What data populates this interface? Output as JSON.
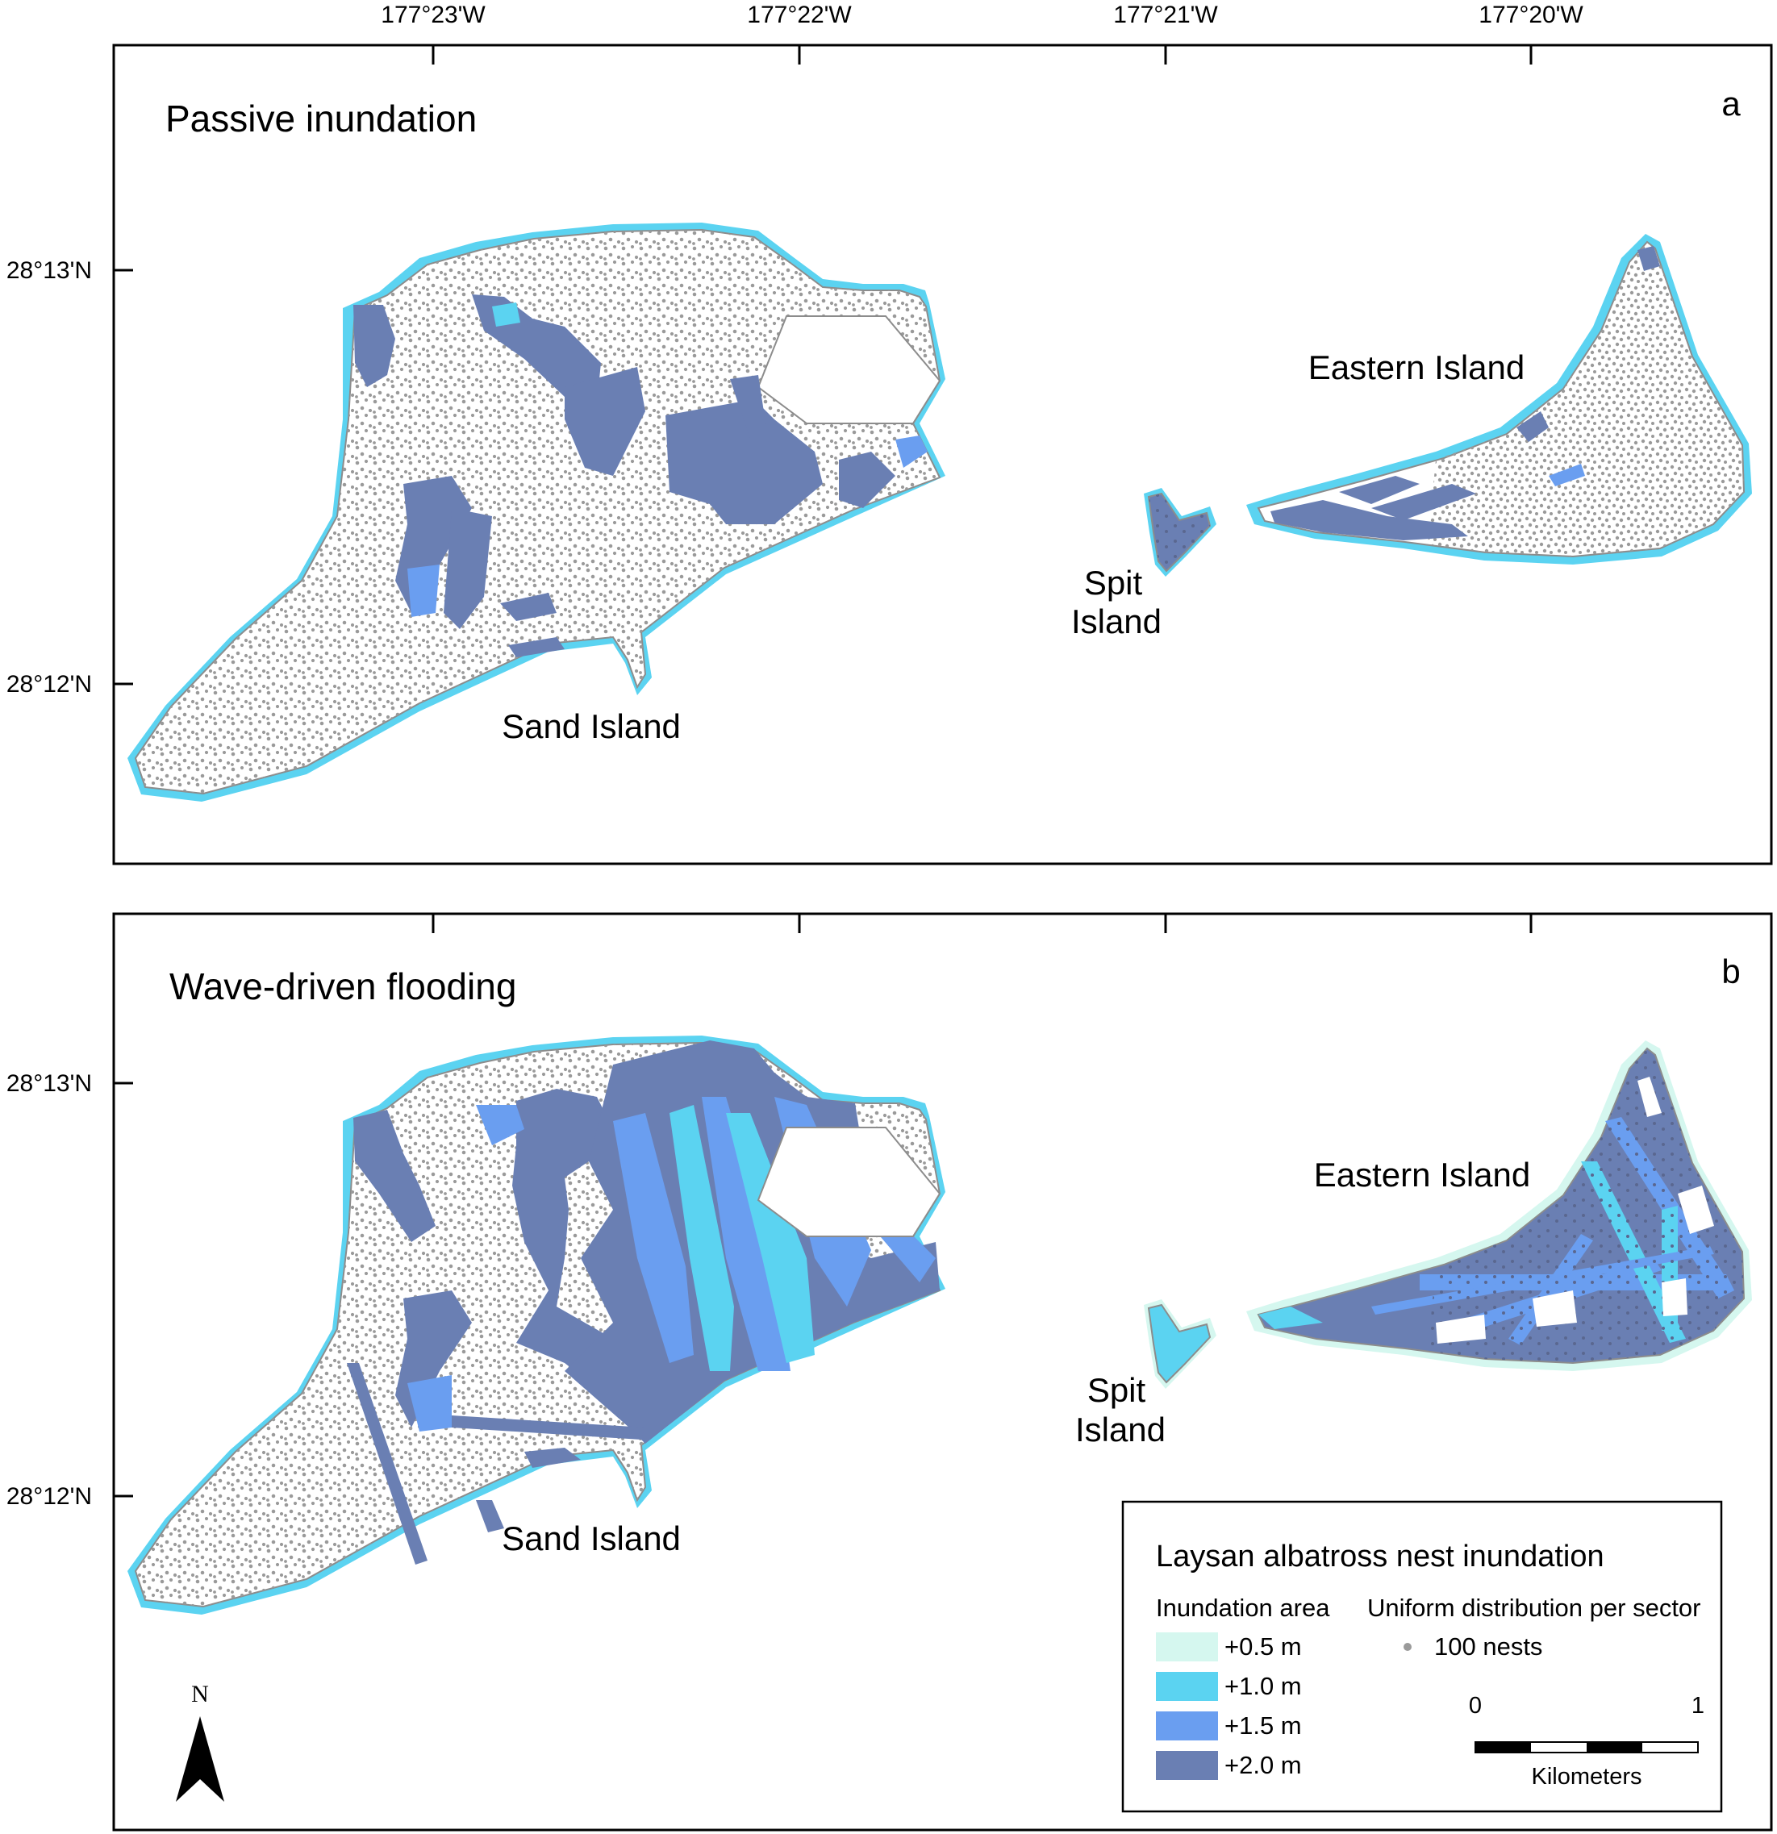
{
  "colors": {
    "level_0_5": "#d5f7ef",
    "level_1_0": "#5bd3f1",
    "level_1_5": "#6a9ef0",
    "level_2_0": "#6a7fb3",
    "nest_dot": "#9a9a9a",
    "land": "#ffffff",
    "outline": "#8c8c8c"
  },
  "longitude_labels": [
    "177°23'W",
    "177°22'W",
    "177°21'W",
    "177°20'W"
  ],
  "latitude_labels": [
    "28°13'N",
    "28°12'N"
  ],
  "panels": [
    {
      "letter": "a",
      "title": "Passive inundation",
      "labels": {
        "sand": "Sand Island",
        "eastern": "Eastern Island",
        "spit_line1": "Spit",
        "spit_line2": "Island"
      }
    },
    {
      "letter": "b",
      "title": "Wave-driven flooding",
      "labels": {
        "sand": "Sand Island",
        "eastern": "Eastern Island",
        "spit_line1": "Spit",
        "spit_line2": "Island"
      }
    }
  ],
  "legend": {
    "title": "Laysan albatross nest inundation",
    "area_heading": "Inundation area",
    "levels": [
      "+0.5 m",
      "+1.0 m",
      "+1.5 m",
      "+2.0 m"
    ],
    "dist_heading": "Uniform distribution per sector",
    "dot_label": "100 nests"
  },
  "scale_bar": {
    "min_label": "0",
    "max_label": "1",
    "unit": "Kilometers"
  },
  "north_arrow": {
    "label": "N"
  }
}
